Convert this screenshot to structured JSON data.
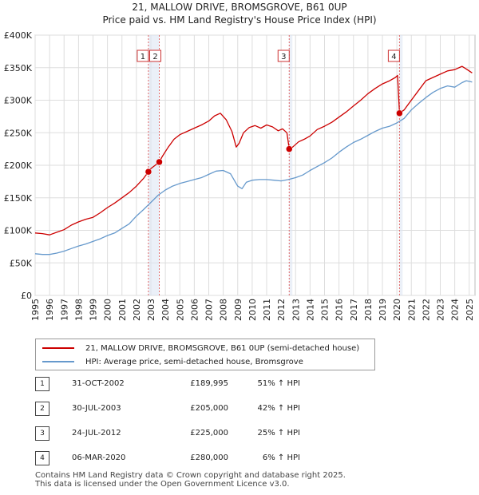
{
  "title_line1": "21, MALLOW DRIVE, BROMSGROVE, B61 0UP",
  "title_line2": "Price paid vs. HM Land Registry's House Price Index (HPI)",
  "colors": {
    "property": "#cc0000",
    "hpi": "#6699cc",
    "marker_band": "#dde6f3",
    "marker_line": "#e06666"
  },
  "legend": {
    "property_label": "21, MALLOW DRIVE, BROMSGROVE, B61 0UP (semi-detached house)",
    "hpi_label": "HPI: Average price, semi-detached house, Bromsgrove"
  },
  "sales": [
    {
      "num": "1",
      "date": "31-OCT-2002",
      "price": "£189,995",
      "pct": "51% ↑ HPI"
    },
    {
      "num": "2",
      "date": "30-JUL-2003",
      "price": "£205,000",
      "pct": "42% ↑ HPI"
    },
    {
      "num": "3",
      "date": "24-JUL-2012",
      "price": "£225,000",
      "pct": "25% ↑ HPI"
    },
    {
      "num": "4",
      "date": "06-MAR-2020",
      "price": "£280,000",
      "pct": "6% ↑ HPI"
    }
  ],
  "footer_line1": "Contains HM Land Registry data © Crown copyright and database right 2025.",
  "footer_line2": "This data is licensed under the Open Government Licence v3.0.",
  "chart_data": {
    "type": "line",
    "title": "",
    "xlabel": "",
    "ylabel": "",
    "xlim": [
      1995,
      2025.4
    ],
    "ylim": [
      0,
      400000
    ],
    "grid": true,
    "y_ticks": [
      0,
      50000,
      100000,
      150000,
      200000,
      250000,
      300000,
      350000,
      400000
    ],
    "y_tick_labels": [
      "£0",
      "£50K",
      "£100K",
      "£150K",
      "£200K",
      "£250K",
      "£300K",
      "£350K",
      "£400K"
    ],
    "x_ticks": [
      1995,
      1996,
      1997,
      1998,
      1999,
      2000,
      2001,
      2002,
      2003,
      2004,
      2005,
      2006,
      2007,
      2008,
      2009,
      2010,
      2011,
      2012,
      2013,
      2014,
      2015,
      2016,
      2017,
      2018,
      2019,
      2020,
      2021,
      2022,
      2023,
      2024,
      2025
    ],
    "x_tick_labels": [
      "1995",
      "1996",
      "1997",
      "1998",
      "1999",
      "2000",
      "2001",
      "2002",
      "2003",
      "2004",
      "2005",
      "2006",
      "2007",
      "2008",
      "2009",
      "2010",
      "2011",
      "2012",
      "2013",
      "2014",
      "2015",
      "2016",
      "2017",
      "2018",
      "2019",
      "2020",
      "2021",
      "2022",
      "2023",
      "2024",
      "2025"
    ],
    "series": [
      {
        "name": "21, MALLOW DRIVE, BROMSGROVE, B61 0UP (semi-detached house)",
        "x": [
          1995.0,
          1995.5,
          1996.0,
          1996.5,
          1997.0,
          1997.5,
          1998.0,
          1998.5,
          1999.0,
          1999.5,
          2000.0,
          2000.5,
          2001.0,
          2001.5,
          2002.0,
          2002.5,
          2002.83,
          2003.0,
          2003.3,
          2003.58,
          2003.8,
          2004.2,
          2004.6,
          2005.0,
          2005.5,
          2006.0,
          2006.5,
          2007.0,
          2007.4,
          2007.8,
          2008.2,
          2008.6,
          2008.9,
          2009.1,
          2009.4,
          2009.8,
          2010.2,
          2010.6,
          2011.0,
          2011.4,
          2011.8,
          2012.1,
          2012.4,
          2012.56,
          2012.8,
          2013.2,
          2013.6,
          2014.0,
          2014.5,
          2015.0,
          2015.5,
          2016.0,
          2016.5,
          2017.0,
          2017.5,
          2018.0,
          2018.5,
          2019.0,
          2019.5,
          2019.9,
          2020.05,
          2020.18,
          2020.5,
          2021.0,
          2021.5,
          2022.0,
          2022.5,
          2023.0,
          2023.5,
          2024.0,
          2024.5,
          2024.8,
          2025.2
        ],
        "values": [
          96000,
          95000,
          93000,
          97000,
          101000,
          108000,
          113000,
          117000,
          120000,
          127000,
          135000,
          142000,
          150000,
          158000,
          168000,
          180000,
          189995,
          195000,
          200000,
          205000,
          214000,
          228000,
          240000,
          247000,
          252000,
          257000,
          262000,
          268000,
          276000,
          280000,
          270000,
          252000,
          228000,
          234000,
          250000,
          258000,
          261000,
          257000,
          262000,
          259000,
          253000,
          256000,
          250000,
          225000,
          228000,
          236000,
          240000,
          245000,
          255000,
          260000,
          266000,
          274000,
          282000,
          291000,
          300000,
          310000,
          318000,
          325000,
          330000,
          335000,
          338000,
          280000,
          285000,
          300000,
          315000,
          330000,
          335000,
          340000,
          345000,
          347000,
          352000,
          348000,
          342000
        ]
      },
      {
        "name": "HPI: Average price, semi-detached house, Bromsgrove",
        "x": [
          1995.0,
          1995.5,
          1996.0,
          1996.5,
          1997.0,
          1997.5,
          1998.0,
          1998.5,
          1999.0,
          1999.5,
          2000.0,
          2000.5,
          2001.0,
          2001.5,
          2002.0,
          2002.5,
          2003.0,
          2003.5,
          2004.0,
          2004.5,
          2005.0,
          2005.5,
          2006.0,
          2006.5,
          2007.0,
          2007.5,
          2008.0,
          2008.5,
          2009.0,
          2009.3,
          2009.6,
          2010.0,
          2010.5,
          2011.0,
          2011.5,
          2012.0,
          2012.5,
          2013.0,
          2013.5,
          2014.0,
          2014.5,
          2015.0,
          2015.5,
          2016.0,
          2016.5,
          2017.0,
          2017.5,
          2018.0,
          2018.5,
          2019.0,
          2019.5,
          2020.0,
          2020.5,
          2021.0,
          2021.5,
          2022.0,
          2022.5,
          2023.0,
          2023.5,
          2024.0,
          2024.5,
          2024.8,
          2025.2
        ],
        "values": [
          64000,
          63000,
          63000,
          65000,
          68000,
          72000,
          76000,
          79000,
          83000,
          87000,
          92000,
          96000,
          103000,
          110000,
          122000,
          132000,
          143000,
          154000,
          162000,
          168000,
          172000,
          175000,
          178000,
          181000,
          186000,
          191000,
          192000,
          187000,
          168000,
          164000,
          174000,
          177000,
          178000,
          178000,
          177000,
          176000,
          178000,
          181000,
          185000,
          192000,
          198000,
          204000,
          211000,
          220000,
          228000,
          235000,
          240000,
          246000,
          252000,
          257000,
          260000,
          265000,
          272000,
          285000,
          295000,
          304000,
          312000,
          318000,
          322000,
          320000,
          327000,
          330000,
          328000
        ]
      }
    ],
    "sale_points": [
      {
        "label": "1",
        "x": 2002.83,
        "value": 189995
      },
      {
        "label": "2",
        "x": 2003.58,
        "value": 205000
      },
      {
        "label": "3",
        "x": 2012.56,
        "value": 225000
      },
      {
        "label": "4",
        "x": 2020.18,
        "value": 280000
      }
    ]
  }
}
